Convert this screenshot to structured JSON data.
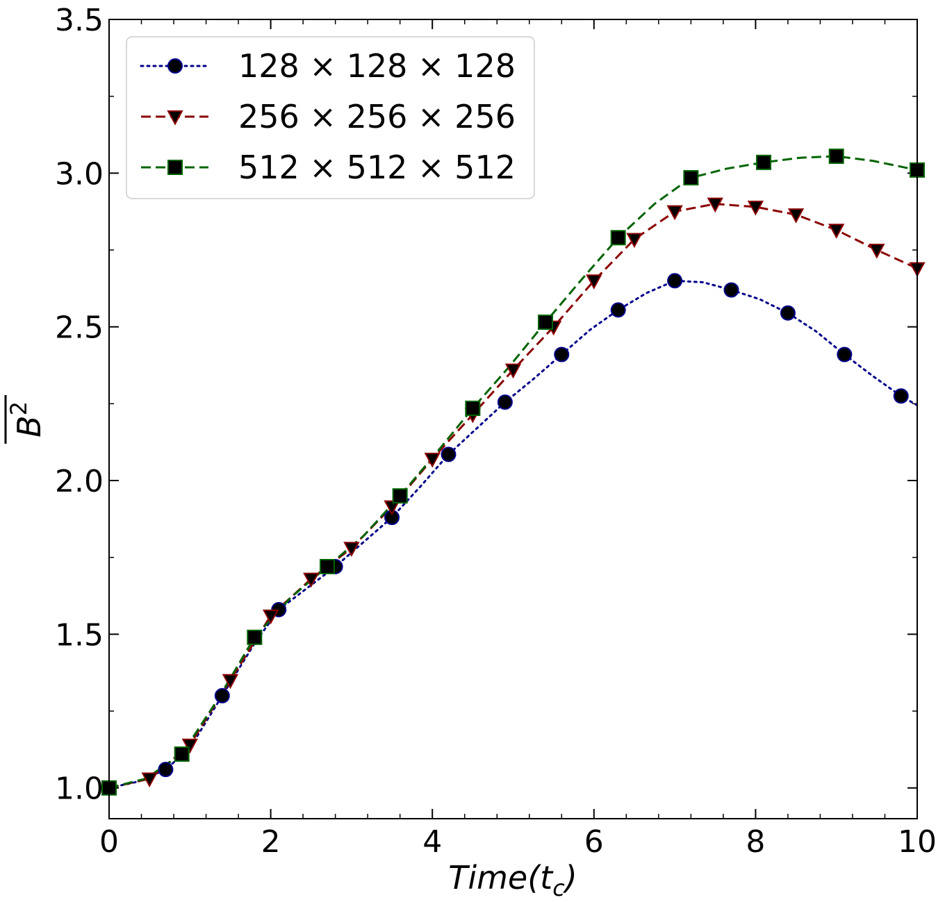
{
  "chart_data": {
    "type": "line",
    "xlabel": "Time(t_c)",
    "xlabel_main": "Time(t",
    "xlabel_sub": "c",
    "xlabel_close": ")",
    "ylabel": "B^2 (overlined)",
    "ylabel_main": "B",
    "ylabel_sup": "2",
    "xlim": [
      0,
      10
    ],
    "ylim": [
      0.9,
      3.5
    ],
    "xticks": [
      0,
      2,
      4,
      6,
      8,
      10
    ],
    "xtick_labels": [
      "0",
      "2",
      "4",
      "6",
      "8",
      "10"
    ],
    "yticks": [
      1.0,
      1.5,
      2.0,
      2.5,
      3.0,
      3.5
    ],
    "ytick_labels": [
      "1.0",
      "1.5",
      "2.0",
      "2.5",
      "3.0",
      "3.5"
    ],
    "grid": false,
    "legend_position": "top-left",
    "series": [
      {
        "name": "128 × 128 × 128",
        "color": "#00008b",
        "linestyle": "dotted",
        "marker": "circle",
        "line_x": [
          0,
          0.35,
          0.7,
          1.0,
          1.4,
          1.8,
          2.1,
          2.45,
          2.8,
          3.15,
          3.5,
          3.85,
          4.2,
          4.55,
          4.9,
          5.25,
          5.6,
          5.95,
          6.3,
          6.65,
          7.0,
          7.35,
          7.7,
          8.05,
          8.4,
          8.75,
          9.1,
          9.45,
          9.8,
          10.0
        ],
        "line_y": [
          1.0,
          1.02,
          1.06,
          1.13,
          1.3,
          1.47,
          1.58,
          1.65,
          1.72,
          1.8,
          1.88,
          1.98,
          2.085,
          2.17,
          2.255,
          2.33,
          2.41,
          2.49,
          2.555,
          2.61,
          2.65,
          2.645,
          2.62,
          2.59,
          2.545,
          2.485,
          2.41,
          2.34,
          2.275,
          2.245
        ],
        "marker_x": [
          0.7,
          1.4,
          2.1,
          2.8,
          3.5,
          4.2,
          4.9,
          5.6,
          6.3,
          7.0,
          7.7,
          8.4,
          9.1,
          9.8
        ],
        "marker_y": [
          1.06,
          1.3,
          1.58,
          1.72,
          1.88,
          2.085,
          2.255,
          2.41,
          2.555,
          2.65,
          2.62,
          2.545,
          2.41,
          2.275
        ]
      },
      {
        "name": "256 × 256 × 256",
        "color": "#8b0000",
        "linestyle": "dashed",
        "marker": "triangle-down",
        "line_x": [
          0,
          0.5,
          1.0,
          1.5,
          2.0,
          2.5,
          3.0,
          3.5,
          4.0,
          4.5,
          5.0,
          5.5,
          6.0,
          6.5,
          7.0,
          7.5,
          8.0,
          8.5,
          9.0,
          9.5,
          10.0
        ],
        "line_y": [
          1.0,
          1.03,
          1.14,
          1.35,
          1.56,
          1.68,
          1.78,
          1.915,
          2.07,
          2.215,
          2.36,
          2.5,
          2.65,
          2.785,
          2.875,
          2.9,
          2.89,
          2.865,
          2.815,
          2.75,
          2.69
        ],
        "marker_x": [
          0.5,
          1.0,
          1.5,
          2.0,
          2.5,
          3.0,
          3.5,
          4.0,
          4.5,
          5.0,
          5.5,
          6.0,
          6.5,
          7.0,
          7.5,
          8.0,
          8.5,
          9.0,
          9.5,
          10.0
        ],
        "marker_y": [
          1.03,
          1.14,
          1.35,
          1.56,
          1.68,
          1.78,
          1.915,
          2.07,
          2.215,
          2.36,
          2.5,
          2.65,
          2.785,
          2.875,
          2.9,
          2.89,
          2.865,
          2.815,
          2.75,
          2.69
        ]
      },
      {
        "name": "512 × 512 × 512",
        "color": "#006400",
        "linestyle": "dashed",
        "marker": "square",
        "line_x": [
          0,
          0.45,
          0.9,
          1.35,
          1.8,
          2.25,
          2.7,
          3.15,
          3.6,
          4.05,
          4.5,
          4.95,
          5.4,
          5.85,
          6.3,
          6.75,
          7.2,
          7.65,
          8.1,
          8.55,
          9.0,
          9.45,
          10.0
        ],
        "line_y": [
          1.0,
          1.03,
          1.11,
          1.29,
          1.49,
          1.62,
          1.72,
          1.82,
          1.95,
          2.09,
          2.235,
          2.37,
          2.515,
          2.655,
          2.79,
          2.9,
          2.985,
          3.015,
          3.035,
          3.05,
          3.055,
          3.04,
          3.01
        ],
        "marker_x": [
          0,
          0.9,
          1.8,
          2.7,
          3.6,
          4.5,
          5.4,
          6.3,
          7.2,
          8.1,
          9.0,
          10.0
        ],
        "marker_y": [
          1.0,
          1.11,
          1.49,
          1.72,
          1.95,
          2.235,
          2.515,
          2.79,
          2.985,
          3.035,
          3.055,
          3.01
        ]
      }
    ]
  }
}
